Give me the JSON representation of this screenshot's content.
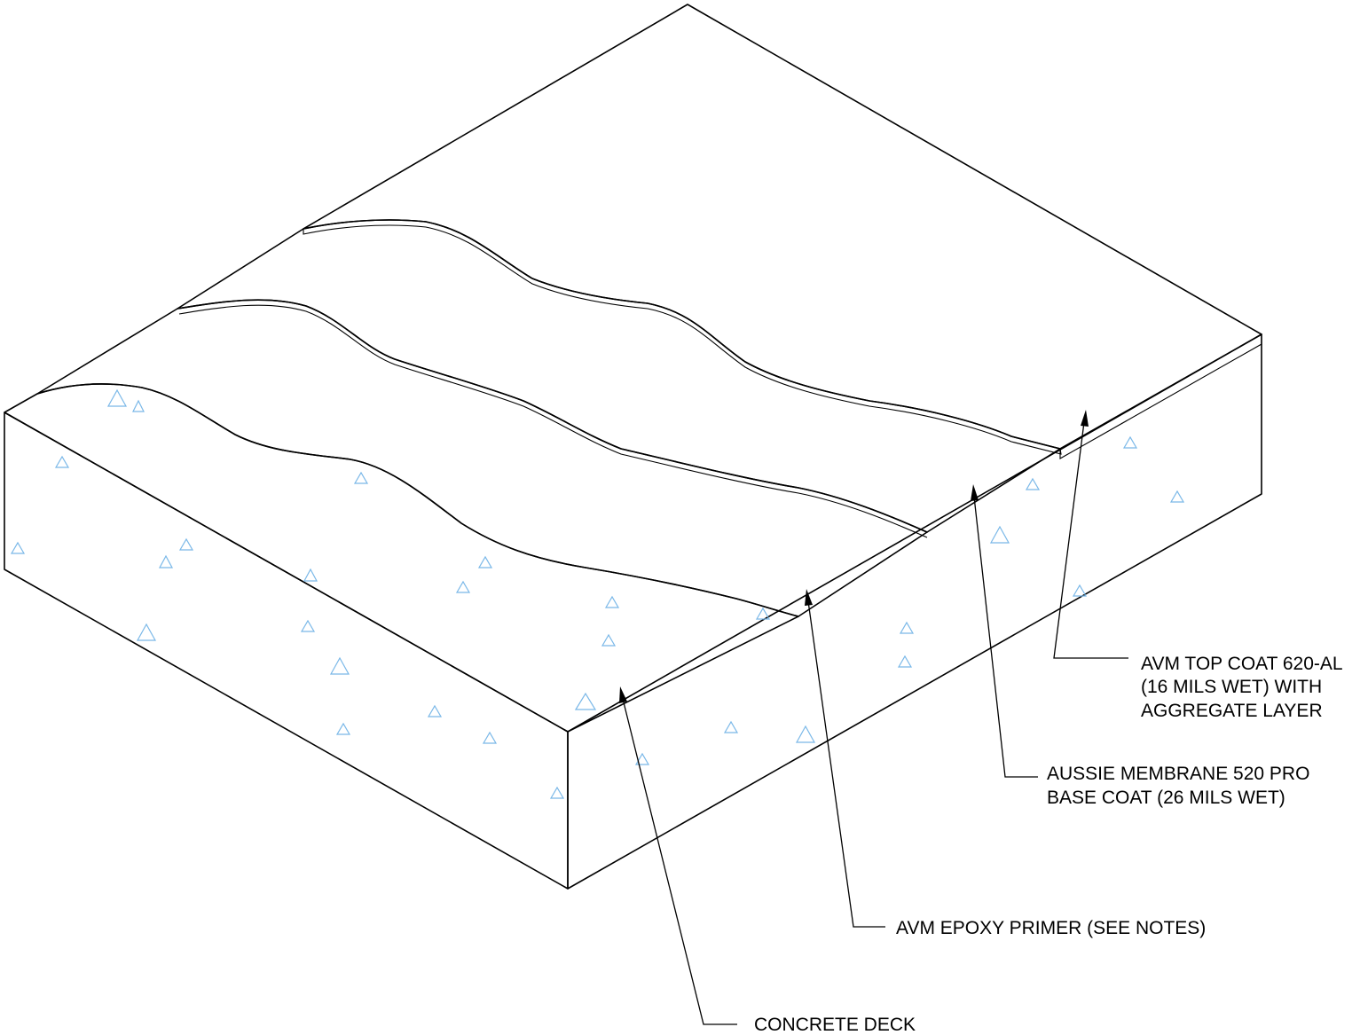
{
  "colors": {
    "concrete": "#ffffff",
    "aggregate": "#5aa8e0",
    "base_coat": "#ff00ff",
    "top_coat": "#e57de9",
    "top_coat_edge": "#c9a0c9",
    "linework": "#000000"
  },
  "layers": [
    {
      "id": "top-coat",
      "lines": [
        "AVM TOP COAT 620-AL",
        "(16 MILS WET) WITH",
        "AGGREGATE LAYER"
      ]
    },
    {
      "id": "base-coat",
      "lines": [
        "AUSSIE MEMBRANE 520 PRO",
        "BASE COAT (26 MILS WET)"
      ]
    },
    {
      "id": "primer",
      "lines": [
        "AVM EPOXY PRIMER (SEE NOTES)"
      ]
    },
    {
      "id": "concrete",
      "lines": [
        "CONCRETE DECK"
      ]
    }
  ]
}
